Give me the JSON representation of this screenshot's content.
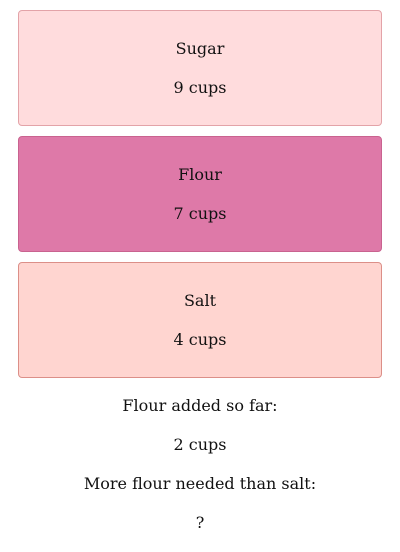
{
  "cards": [
    {
      "name": "Sugar",
      "amount": "9 cups",
      "bg": "#ffdcdd",
      "border": "#e3a3a8"
    },
    {
      "name": "Flour",
      "amount": "7 cups",
      "bg": "#de79a8",
      "border": "#c9638f"
    },
    {
      "name": "Salt",
      "amount": "4 cups",
      "bg": "#ffd5d0",
      "border": "#dc8f88"
    }
  ],
  "summary": {
    "added_label": "Flour added so far:",
    "added_value": "2 cups",
    "question_label": "More flour needed than salt:",
    "answer": "?"
  }
}
